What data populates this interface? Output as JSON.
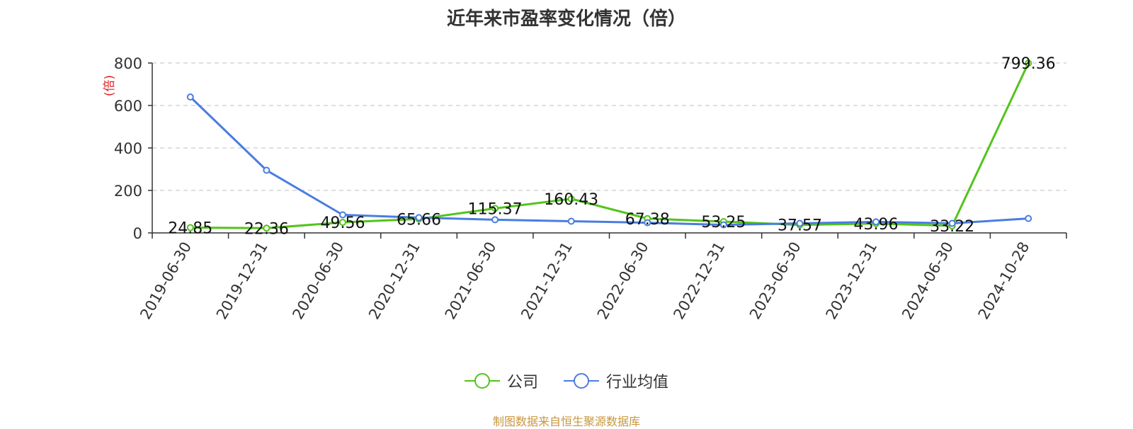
{
  "title": "近年来市盈率变化情况（倍）",
  "source": "制图数据来自恒生聚源数据库",
  "colors": {
    "company": "#52c41a",
    "industry": "#4a7de0",
    "unit": "#e02020",
    "axis": "#333333",
    "grid": "#cccccc"
  },
  "chart_data": {
    "type": "line",
    "title": "近年来市盈率变化情况（倍）",
    "ylabel": "(倍)",
    "ylim": [
      0,
      800
    ],
    "yticks": [
      0,
      200,
      400,
      600,
      800
    ],
    "ytick_labels": [
      "0",
      "200",
      "400",
      "600",
      "800"
    ],
    "grid": true,
    "legend_position": "bottom",
    "categories": [
      "2019-06-30",
      "2019-12-31",
      "2020-06-30",
      "2020-12-31",
      "2021-06-30",
      "2021-12-31",
      "2022-06-30",
      "2022-12-31",
      "2023-06-30",
      "2023-12-31",
      "2024-06-30",
      "2024-10-28"
    ],
    "series": [
      {
        "name": "公司",
        "color": "#52c41a",
        "values": [
          24.85,
          22.36,
          49.56,
          65.66,
          115.37,
          160.43,
          67.38,
          53.25,
          37.57,
          43.96,
          33.22,
          799.36
        ],
        "labels": [
          "24.85",
          "22.36",
          "49.56",
          "65.66",
          "115.37",
          "160.43",
          "67.38",
          "53.25",
          "37.57",
          "43.96",
          "33.22",
          "799.36"
        ]
      },
      {
        "name": "行业均值",
        "color": "#4a7de0",
        "values": [
          640,
          295,
          85,
          72,
          62,
          55,
          48,
          38,
          45,
          52,
          45,
          68
        ]
      }
    ]
  }
}
